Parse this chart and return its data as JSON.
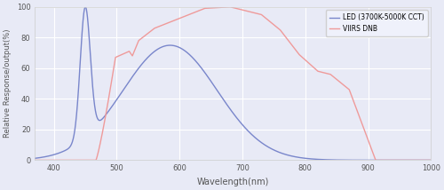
{
  "title": "",
  "xlabel": "Wavelength(nm)",
  "ylabel": "Relative Response/output(%)",
  "xlim": [
    370,
    1000
  ],
  "ylim": [
    0,
    100
  ],
  "xticks": [
    400,
    500,
    600,
    700,
    800,
    900,
    1000
  ],
  "yticks": [
    0,
    20,
    40,
    60,
    80,
    100
  ],
  "background_color": "#e8eaf6",
  "grid_color": "#ffffff",
  "led_color": "#7986cb",
  "viirs_color": "#ef9a9a",
  "legend_labels": [
    "LED (3700K-5000K CCT)",
    "VIIRS DNB"
  ],
  "figsize": [
    5.0,
    2.14
  ],
  "dpi": 100
}
